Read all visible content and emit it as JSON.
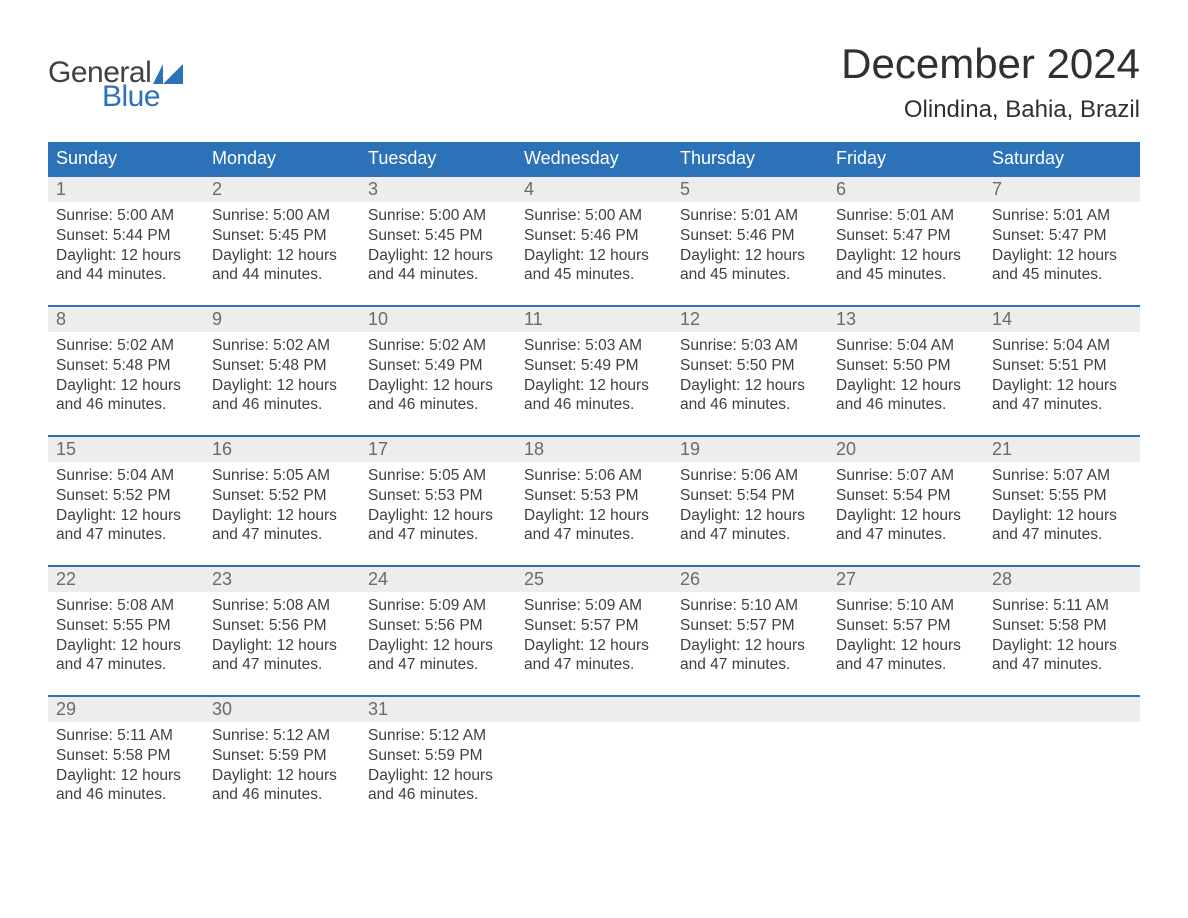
{
  "logo": {
    "word1": "General",
    "word2": "Blue"
  },
  "title": "December 2024",
  "location": "Olindina, Bahia, Brazil",
  "colors": {
    "brand_blue": "#2b72b9",
    "header_bg": "#2b72b9",
    "header_text": "#ffffff",
    "daynum_bg": "#eceded",
    "daynum_text": "#6b6b6b",
    "body_text": "#404040",
    "background": "#ffffff"
  },
  "typography": {
    "title_fontsize": 42,
    "location_fontsize": 24,
    "header_fontsize": 18,
    "daynum_fontsize": 18,
    "body_fontsize": 15.5,
    "logo_fontsize": 30
  },
  "layout": {
    "columns": 7,
    "rows": 5,
    "week_border_top": "2px solid #2b72b9"
  },
  "weekdays": [
    "Sunday",
    "Monday",
    "Tuesday",
    "Wednesday",
    "Thursday",
    "Friday",
    "Saturday"
  ],
  "weeks": [
    [
      {
        "n": "1",
        "sr": "Sunrise: 5:00 AM",
        "ss": "Sunset: 5:44 PM",
        "d1": "Daylight: 12 hours",
        "d2": "and 44 minutes."
      },
      {
        "n": "2",
        "sr": "Sunrise: 5:00 AM",
        "ss": "Sunset: 5:45 PM",
        "d1": "Daylight: 12 hours",
        "d2": "and 44 minutes."
      },
      {
        "n": "3",
        "sr": "Sunrise: 5:00 AM",
        "ss": "Sunset: 5:45 PM",
        "d1": "Daylight: 12 hours",
        "d2": "and 44 minutes."
      },
      {
        "n": "4",
        "sr": "Sunrise: 5:00 AM",
        "ss": "Sunset: 5:46 PM",
        "d1": "Daylight: 12 hours",
        "d2": "and 45 minutes."
      },
      {
        "n": "5",
        "sr": "Sunrise: 5:01 AM",
        "ss": "Sunset: 5:46 PM",
        "d1": "Daylight: 12 hours",
        "d2": "and 45 minutes."
      },
      {
        "n": "6",
        "sr": "Sunrise: 5:01 AM",
        "ss": "Sunset: 5:47 PM",
        "d1": "Daylight: 12 hours",
        "d2": "and 45 minutes."
      },
      {
        "n": "7",
        "sr": "Sunrise: 5:01 AM",
        "ss": "Sunset: 5:47 PM",
        "d1": "Daylight: 12 hours",
        "d2": "and 45 minutes."
      }
    ],
    [
      {
        "n": "8",
        "sr": "Sunrise: 5:02 AM",
        "ss": "Sunset: 5:48 PM",
        "d1": "Daylight: 12 hours",
        "d2": "and 46 minutes."
      },
      {
        "n": "9",
        "sr": "Sunrise: 5:02 AM",
        "ss": "Sunset: 5:48 PM",
        "d1": "Daylight: 12 hours",
        "d2": "and 46 minutes."
      },
      {
        "n": "10",
        "sr": "Sunrise: 5:02 AM",
        "ss": "Sunset: 5:49 PM",
        "d1": "Daylight: 12 hours",
        "d2": "and 46 minutes."
      },
      {
        "n": "11",
        "sr": "Sunrise: 5:03 AM",
        "ss": "Sunset: 5:49 PM",
        "d1": "Daylight: 12 hours",
        "d2": "and 46 minutes."
      },
      {
        "n": "12",
        "sr": "Sunrise: 5:03 AM",
        "ss": "Sunset: 5:50 PM",
        "d1": "Daylight: 12 hours",
        "d2": "and 46 minutes."
      },
      {
        "n": "13",
        "sr": "Sunrise: 5:04 AM",
        "ss": "Sunset: 5:50 PM",
        "d1": "Daylight: 12 hours",
        "d2": "and 46 minutes."
      },
      {
        "n": "14",
        "sr": "Sunrise: 5:04 AM",
        "ss": "Sunset: 5:51 PM",
        "d1": "Daylight: 12 hours",
        "d2": "and 47 minutes."
      }
    ],
    [
      {
        "n": "15",
        "sr": "Sunrise: 5:04 AM",
        "ss": "Sunset: 5:52 PM",
        "d1": "Daylight: 12 hours",
        "d2": "and 47 minutes."
      },
      {
        "n": "16",
        "sr": "Sunrise: 5:05 AM",
        "ss": "Sunset: 5:52 PM",
        "d1": "Daylight: 12 hours",
        "d2": "and 47 minutes."
      },
      {
        "n": "17",
        "sr": "Sunrise: 5:05 AM",
        "ss": "Sunset: 5:53 PM",
        "d1": "Daylight: 12 hours",
        "d2": "and 47 minutes."
      },
      {
        "n": "18",
        "sr": "Sunrise: 5:06 AM",
        "ss": "Sunset: 5:53 PM",
        "d1": "Daylight: 12 hours",
        "d2": "and 47 minutes."
      },
      {
        "n": "19",
        "sr": "Sunrise: 5:06 AM",
        "ss": "Sunset: 5:54 PM",
        "d1": "Daylight: 12 hours",
        "d2": "and 47 minutes."
      },
      {
        "n": "20",
        "sr": "Sunrise: 5:07 AM",
        "ss": "Sunset: 5:54 PM",
        "d1": "Daylight: 12 hours",
        "d2": "and 47 minutes."
      },
      {
        "n": "21",
        "sr": "Sunrise: 5:07 AM",
        "ss": "Sunset: 5:55 PM",
        "d1": "Daylight: 12 hours",
        "d2": "and 47 minutes."
      }
    ],
    [
      {
        "n": "22",
        "sr": "Sunrise: 5:08 AM",
        "ss": "Sunset: 5:55 PM",
        "d1": "Daylight: 12 hours",
        "d2": "and 47 minutes."
      },
      {
        "n": "23",
        "sr": "Sunrise: 5:08 AM",
        "ss": "Sunset: 5:56 PM",
        "d1": "Daylight: 12 hours",
        "d2": "and 47 minutes."
      },
      {
        "n": "24",
        "sr": "Sunrise: 5:09 AM",
        "ss": "Sunset: 5:56 PM",
        "d1": "Daylight: 12 hours",
        "d2": "and 47 minutes."
      },
      {
        "n": "25",
        "sr": "Sunrise: 5:09 AM",
        "ss": "Sunset: 5:57 PM",
        "d1": "Daylight: 12 hours",
        "d2": "and 47 minutes."
      },
      {
        "n": "26",
        "sr": "Sunrise: 5:10 AM",
        "ss": "Sunset: 5:57 PM",
        "d1": "Daylight: 12 hours",
        "d2": "and 47 minutes."
      },
      {
        "n": "27",
        "sr": "Sunrise: 5:10 AM",
        "ss": "Sunset: 5:57 PM",
        "d1": "Daylight: 12 hours",
        "d2": "and 47 minutes."
      },
      {
        "n": "28",
        "sr": "Sunrise: 5:11 AM",
        "ss": "Sunset: 5:58 PM",
        "d1": "Daylight: 12 hours",
        "d2": "and 47 minutes."
      }
    ],
    [
      {
        "n": "29",
        "sr": "Sunrise: 5:11 AM",
        "ss": "Sunset: 5:58 PM",
        "d1": "Daylight: 12 hours",
        "d2": "and 46 minutes."
      },
      {
        "n": "30",
        "sr": "Sunrise: 5:12 AM",
        "ss": "Sunset: 5:59 PM",
        "d1": "Daylight: 12 hours",
        "d2": "and 46 minutes."
      },
      {
        "n": "31",
        "sr": "Sunrise: 5:12 AM",
        "ss": "Sunset: 5:59 PM",
        "d1": "Daylight: 12 hours",
        "d2": "and 46 minutes."
      },
      {
        "empty": true
      },
      {
        "empty": true
      },
      {
        "empty": true
      },
      {
        "empty": true
      }
    ]
  ]
}
